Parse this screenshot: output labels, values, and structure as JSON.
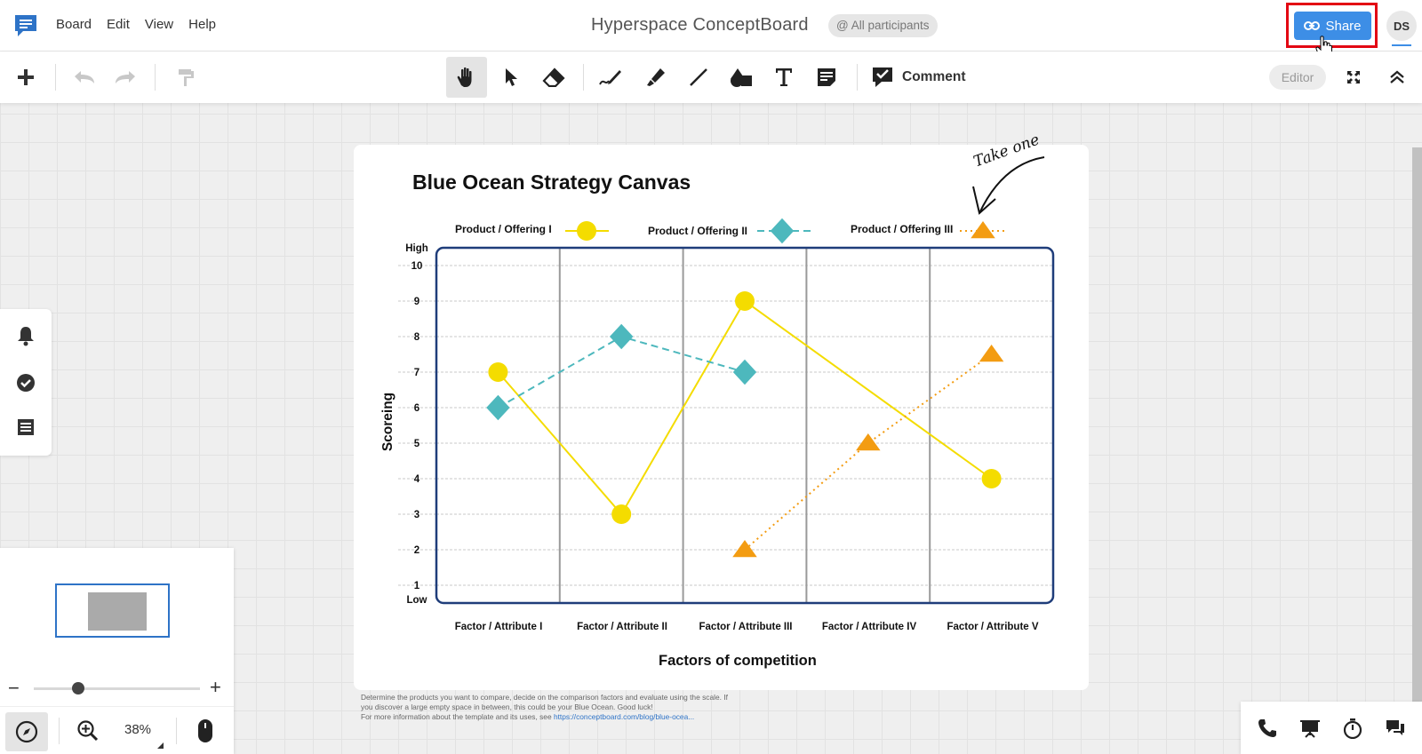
{
  "menu": {
    "items": [
      {
        "label": "Board"
      },
      {
        "label": "Edit"
      },
      {
        "label": "View"
      },
      {
        "label": "Help"
      }
    ]
  },
  "header": {
    "title": "Hyperspace ConceptBoard",
    "participants": "@ All participants",
    "share_label": "Share",
    "avatar_initials": "DS"
  },
  "toolbar": {
    "comment_label": "Comment",
    "mode_label": "Editor"
  },
  "minimap": {
    "zoom_minus": "−",
    "zoom_plus": "+",
    "zoom_level": "38%",
    "zoom_fraction": 0.27
  },
  "board": {
    "annotation": "Take one",
    "footnote_line1": "Determine the products you want to compare, decide on the comparison factors and evaluate using the scale. If",
    "footnote_line2": "you discover a large empty space in between, this could be your Blue Ocean. Good luck!",
    "footnote_line3_prefix": "For more information about the template and its uses, see ",
    "footnote_link": "https://conceptboard.com/blog/blue-ocea..."
  },
  "colors": {
    "accent": "#3d8ee6",
    "highlight": "#e30613",
    "series1": "#f4dc00",
    "series2": "#4db8bd",
    "series3": "#f39c12",
    "chart_border": "#1f3d7a"
  },
  "chart_data": {
    "type": "line",
    "title": "Blue Ocean Strategy Canvas",
    "xlabel": "Factors of competition",
    "ylabel": "Scoreing",
    "categories": [
      "Factor / Attribute I",
      "Factor / Attribute II",
      "Factor / Attribute III",
      "Factor / Attribute IV",
      "Factor / Attribute V"
    ],
    "y_ticks": [
      "10",
      "9",
      "8",
      "7",
      "6",
      "5",
      "4",
      "3",
      "2",
      "1"
    ],
    "y_top_label": "High",
    "y_bottom_label": "Low",
    "ylim": [
      1,
      10
    ],
    "legend_position": "top",
    "series": [
      {
        "name": "Product / Offering I",
        "marker": "circle",
        "line": "solid",
        "points": [
          [
            1,
            7
          ],
          [
            2,
            3
          ],
          [
            3,
            9
          ],
          [
            5,
            4
          ]
        ]
      },
      {
        "name": "Product / Offering II",
        "marker": "diamond",
        "line": "dashed",
        "points": [
          [
            1,
            6
          ],
          [
            2,
            8
          ],
          [
            3,
            7
          ]
        ]
      },
      {
        "name": "Product / Offering III",
        "marker": "triangle",
        "line": "dotted",
        "points": [
          [
            3,
            2
          ],
          [
            4,
            5
          ],
          [
            5,
            7.5
          ]
        ]
      }
    ]
  }
}
